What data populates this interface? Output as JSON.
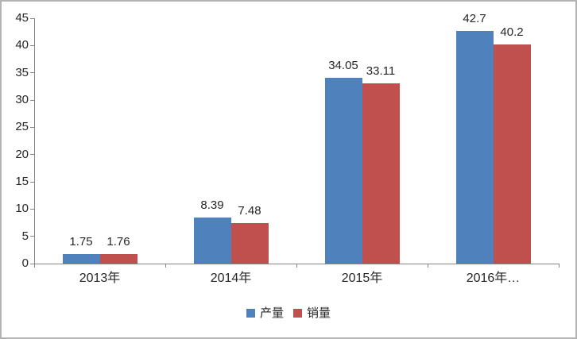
{
  "chart_data": {
    "type": "bar",
    "categories": [
      "2013年",
      "2014年",
      "2015年",
      "2016年…"
    ],
    "series": [
      {
        "name": "产量",
        "color": "#4F81BD",
        "values": [
          1.75,
          8.39,
          34.05,
          42.7
        ],
        "labels": [
          "1.75",
          "8.39",
          "34.05",
          "42.7"
        ]
      },
      {
        "name": "销量",
        "color": "#C0504D",
        "values": [
          1.76,
          7.48,
          33.11,
          40.2
        ],
        "labels": [
          "1.76",
          "7.48",
          "33.11",
          "40.2"
        ]
      }
    ],
    "title": "",
    "xlabel": "",
    "ylabel": "",
    "ylim": [
      0,
      45
    ],
    "ytick_step": 5,
    "ytick_labels": [
      "0",
      "5",
      "10",
      "15",
      "20",
      "25",
      "30",
      "35",
      "40",
      "45"
    ],
    "grid": false,
    "legend_position": "bottom",
    "axis_color": "#868686",
    "text_color": "#262626",
    "background_color": "#ffffff"
  }
}
